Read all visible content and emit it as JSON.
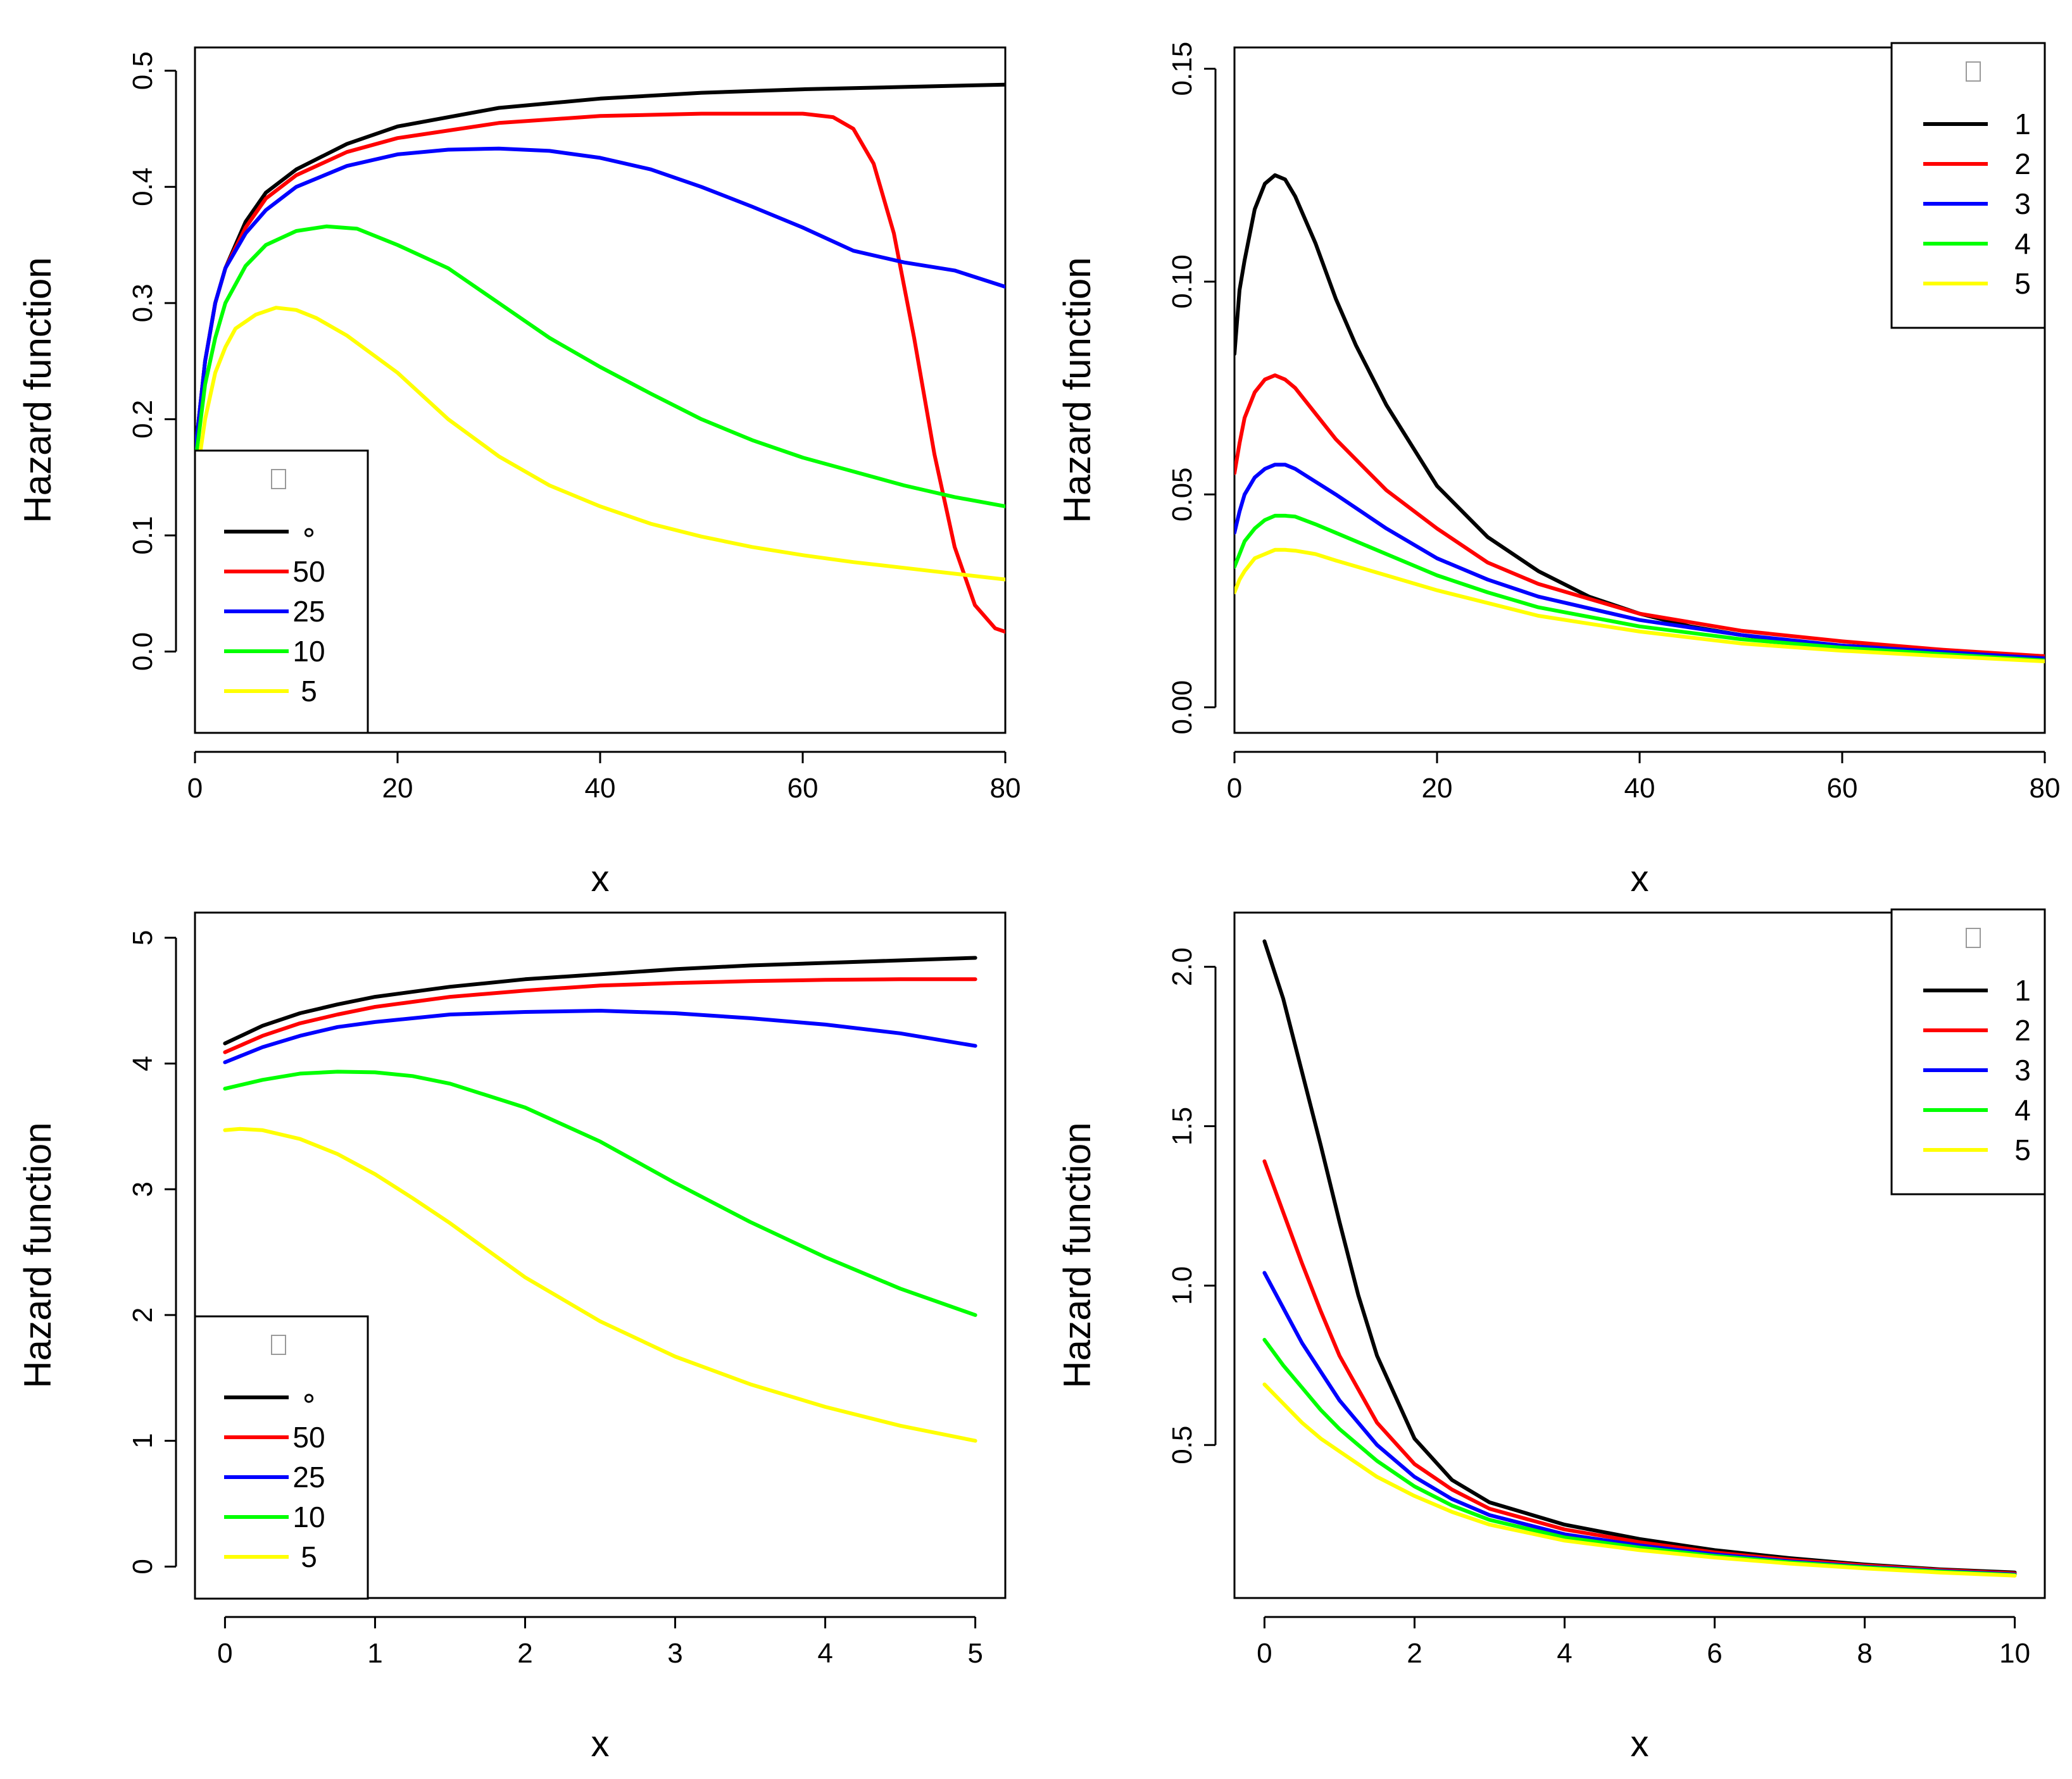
{
  "chart_data": [
    {
      "type": "line",
      "title": "",
      "xlabel": "x",
      "ylabel": "Hazard function",
      "xlim": [
        0,
        80
      ],
      "ylim": [
        -0.07,
        0.52
      ],
      "xticks": [
        0,
        20,
        40,
        60,
        80
      ],
      "xtick_labels": [
        "0",
        "20",
        "40",
        "60",
        "80"
      ],
      "yticks": [
        0.0,
        0.1,
        0.2,
        0.3,
        0.4,
        0.5
      ],
      "ytick_labels": [
        "0.0",
        "0.1",
        "0.2",
        "0.3",
        "0.4",
        "0.5"
      ],
      "legend": {
        "title": "",
        "position": "bottom-left"
      },
      "series": [
        {
          "name": "∘",
          "color": "#000000",
          "x": [
            0,
            1,
            2,
            3,
            5,
            7,
            10,
            15,
            20,
            30,
            40,
            50,
            60,
            70,
            80
          ],
          "y": [
            0.17,
            0.25,
            0.3,
            0.33,
            0.37,
            0.395,
            0.415,
            0.437,
            0.452,
            0.468,
            0.476,
            0.481,
            0.484,
            0.486,
            0.488
          ]
        },
        {
          "name": "50",
          "color": "#ff0000",
          "x": [
            0,
            1,
            2,
            3,
            5,
            7,
            10,
            15,
            20,
            30,
            40,
            50,
            60,
            63,
            65,
            67,
            69,
            71,
            73,
            75,
            77,
            79,
            80
          ],
          "y": [
            0.17,
            0.25,
            0.3,
            0.33,
            0.365,
            0.39,
            0.41,
            0.43,
            0.442,
            0.455,
            0.461,
            0.463,
            0.463,
            0.46,
            0.45,
            0.42,
            0.36,
            0.27,
            0.17,
            0.09,
            0.04,
            0.02,
            0.017
          ]
        },
        {
          "name": "25",
          "color": "#0000ff",
          "x": [
            0,
            1,
            2,
            3,
            5,
            7,
            10,
            15,
            20,
            25,
            30,
            35,
            40,
            45,
            50,
            55,
            60,
            65,
            70,
            75,
            80
          ],
          "y": [
            0.17,
            0.25,
            0.3,
            0.33,
            0.36,
            0.38,
            0.4,
            0.418,
            0.428,
            0.432,
            0.433,
            0.431,
            0.425,
            0.415,
            0.4,
            0.383,
            0.365,
            0.345,
            0.335,
            0.328,
            0.314
          ]
        },
        {
          "name": "10",
          "color": "#00ff00",
          "x": [
            0,
            1,
            2,
            3,
            5,
            7,
            10,
            13,
            16,
            20,
            25,
            30,
            35,
            40,
            45,
            50,
            55,
            60,
            65,
            70,
            75,
            80
          ],
          "y": [
            0.16,
            0.23,
            0.27,
            0.3,
            0.332,
            0.35,
            0.362,
            0.366,
            0.364,
            0.35,
            0.33,
            0.3,
            0.27,
            0.245,
            0.222,
            0.2,
            0.182,
            0.167,
            0.155,
            0.143,
            0.133,
            0.125
          ]
        },
        {
          "name": "5",
          "color": "#ffff00",
          "x": [
            0,
            1,
            2,
            3,
            4,
            6,
            8,
            10,
            12,
            15,
            20,
            25,
            30,
            35,
            40,
            45,
            50,
            55,
            60,
            65,
            70,
            75,
            80
          ],
          "y": [
            0.14,
            0.2,
            0.24,
            0.262,
            0.278,
            0.29,
            0.296,
            0.294,
            0.287,
            0.272,
            0.24,
            0.2,
            0.168,
            0.143,
            0.125,
            0.11,
            0.099,
            0.09,
            0.083,
            0.077,
            0.072,
            0.067,
            0.062
          ]
        }
      ]
    },
    {
      "type": "line",
      "title": "",
      "xlabel": "x",
      "ylabel": "Hazard function",
      "xlim": [
        0,
        80
      ],
      "ylim": [
        -0.006,
        0.155
      ],
      "xticks": [
        0,
        20,
        40,
        60,
        80
      ],
      "xtick_labels": [
        "0",
        "20",
        "40",
        "60",
        "80"
      ],
      "yticks": [
        0.0,
        0.05,
        0.1,
        0.15
      ],
      "ytick_labels": [
        "0.00",
        "0.05",
        "0.10",
        "0.15"
      ],
      "legend": {
        "title": "",
        "position": "top-right"
      },
      "series": [
        {
          "name": "1",
          "color": "#000000",
          "x": [
            0,
            0.5,
            1,
            2,
            3,
            4,
            5,
            6,
            8,
            10,
            12,
            15,
            20,
            25,
            30,
            35,
            40,
            45,
            50,
            55,
            60,
            70,
            80
          ],
          "y": [
            0.083,
            0.098,
            0.105,
            0.117,
            0.123,
            0.125,
            0.124,
            0.12,
            0.109,
            0.096,
            0.085,
            0.071,
            0.052,
            0.04,
            0.032,
            0.026,
            0.022,
            0.019,
            0.017,
            0.0155,
            0.0145,
            0.013,
            0.012
          ]
        },
        {
          "name": "2",
          "color": "#ff0000",
          "x": [
            0,
            0.5,
            1,
            2,
            3,
            4,
            5,
            6,
            8,
            10,
            15,
            20,
            25,
            30,
            40,
            50,
            60,
            70,
            80
          ],
          "y": [
            0.055,
            0.062,
            0.068,
            0.074,
            0.077,
            0.078,
            0.077,
            0.075,
            0.069,
            0.063,
            0.051,
            0.042,
            0.034,
            0.029,
            0.022,
            0.018,
            0.0155,
            0.0135,
            0.012
          ]
        },
        {
          "name": "3",
          "color": "#0000ff",
          "x": [
            0,
            0.5,
            1,
            2,
            3,
            4,
            5,
            6,
            8,
            10,
            15,
            20,
            25,
            30,
            40,
            50,
            60,
            70,
            80
          ],
          "y": [
            0.041,
            0.046,
            0.05,
            0.054,
            0.056,
            0.057,
            0.057,
            0.056,
            0.053,
            0.05,
            0.042,
            0.035,
            0.03,
            0.026,
            0.0205,
            0.017,
            0.0145,
            0.013,
            0.0115
          ]
        },
        {
          "name": "4",
          "color": "#00ff00",
          "x": [
            0,
            0.5,
            1,
            2,
            3,
            4,
            5,
            6,
            8,
            10,
            15,
            20,
            25,
            30,
            40,
            50,
            60,
            70,
            80
          ],
          "y": [
            0.033,
            0.036,
            0.039,
            0.042,
            0.044,
            0.045,
            0.045,
            0.0448,
            0.043,
            0.041,
            0.036,
            0.031,
            0.027,
            0.0235,
            0.019,
            0.016,
            0.014,
            0.0125,
            0.011
          ]
        },
        {
          "name": "5",
          "color": "#ffff00",
          "x": [
            0,
            0.5,
            1,
            2,
            3,
            4,
            5,
            6,
            8,
            10,
            15,
            20,
            25,
            30,
            40,
            50,
            60,
            70,
            80
          ],
          "y": [
            0.027,
            0.03,
            0.032,
            0.035,
            0.036,
            0.037,
            0.037,
            0.0368,
            0.036,
            0.0345,
            0.031,
            0.0275,
            0.0245,
            0.0215,
            0.0178,
            0.015,
            0.0133,
            0.012,
            0.0108
          ]
        }
      ]
    },
    {
      "type": "line",
      "title": "",
      "xlabel": "x",
      "ylabel": "Hazard function",
      "xlim": [
        -0.2,
        5.2
      ],
      "ylim": [
        -0.25,
        5.2
      ],
      "xticks": [
        0,
        1,
        2,
        3,
        4,
        5
      ],
      "xtick_labels": [
        "0",
        "1",
        "2",
        "3",
        "4",
        "5"
      ],
      "yticks": [
        0,
        1,
        2,
        3,
        4,
        5
      ],
      "ytick_labels": [
        "0",
        "1",
        "2",
        "3",
        "4",
        "5"
      ],
      "legend": {
        "title": "",
        "position": "bottom-left"
      },
      "series": [
        {
          "name": "∘",
          "color": "#000000",
          "x": [
            0,
            0.25,
            0.5,
            0.75,
            1,
            1.5,
            2,
            2.5,
            3,
            3.5,
            4,
            4.5,
            5
          ],
          "y": [
            4.16,
            4.3,
            4.4,
            4.47,
            4.53,
            4.61,
            4.67,
            4.71,
            4.75,
            4.78,
            4.8,
            4.82,
            4.84
          ]
        },
        {
          "name": "50",
          "color": "#ff0000",
          "x": [
            0,
            0.25,
            0.5,
            0.75,
            1,
            1.5,
            2,
            2.5,
            3,
            3.5,
            4,
            4.5,
            5
          ],
          "y": [
            4.09,
            4.22,
            4.32,
            4.39,
            4.45,
            4.53,
            4.58,
            4.62,
            4.64,
            4.655,
            4.665,
            4.67,
            4.67
          ]
        },
        {
          "name": "25",
          "color": "#0000ff",
          "x": [
            0,
            0.25,
            0.5,
            0.75,
            1,
            1.5,
            2,
            2.5,
            3,
            3.5,
            4,
            4.5,
            5
          ],
          "y": [
            4.01,
            4.13,
            4.22,
            4.29,
            4.33,
            4.39,
            4.41,
            4.42,
            4.4,
            4.36,
            4.31,
            4.24,
            4.14
          ]
        },
        {
          "name": "10",
          "color": "#00ff00",
          "x": [
            0,
            0.25,
            0.5,
            0.75,
            1,
            1.25,
            1.5,
            2,
            2.5,
            3,
            3.5,
            4,
            4.5,
            5
          ],
          "y": [
            3.8,
            3.87,
            3.92,
            3.935,
            3.93,
            3.9,
            3.84,
            3.65,
            3.38,
            3.05,
            2.74,
            2.46,
            2.21,
            2.0
          ]
        },
        {
          "name": "5",
          "color": "#ffff00",
          "x": [
            0,
            0.1,
            0.25,
            0.5,
            0.75,
            1,
            1.25,
            1.5,
            2,
            2.5,
            3,
            3.5,
            4,
            4.5,
            5
          ],
          "y": [
            3.47,
            3.48,
            3.47,
            3.4,
            3.28,
            3.12,
            2.93,
            2.73,
            2.3,
            1.95,
            1.67,
            1.45,
            1.27,
            1.12,
            1.0
          ]
        }
      ]
    },
    {
      "type": "line",
      "title": "",
      "xlabel": "x",
      "ylabel": "Hazard function",
      "xlim": [
        -0.4,
        10.4
      ],
      "ylim": [
        0.02,
        2.17
      ],
      "xticks": [
        0,
        2,
        4,
        6,
        8,
        10
      ],
      "xtick_labels": [
        "0",
        "2",
        "4",
        "6",
        "8",
        "10"
      ],
      "yticks": [
        0.5,
        1.0,
        1.5,
        2.0
      ],
      "ytick_labels": [
        "0.5",
        "1.0",
        "1.5",
        "2.0"
      ],
      "legend": {
        "title": "",
        "position": "top-right"
      },
      "series": [
        {
          "name": "1",
          "color": "#000000",
          "x": [
            0,
            0.25,
            0.5,
            0.75,
            1,
            1.25,
            1.5,
            2,
            2.5,
            3,
            4,
            5,
            6,
            7,
            8,
            9,
            10
          ],
          "y": [
            2.08,
            1.9,
            1.67,
            1.44,
            1.2,
            0.97,
            0.78,
            0.52,
            0.39,
            0.32,
            0.25,
            0.205,
            0.17,
            0.145,
            0.125,
            0.11,
            0.1
          ]
        },
        {
          "name": "2",
          "color": "#ff0000",
          "x": [
            0,
            0.25,
            0.5,
            0.75,
            1,
            1.5,
            2,
            2.5,
            3,
            4,
            5,
            6,
            7,
            8,
            9,
            10
          ],
          "y": [
            1.39,
            1.23,
            1.07,
            0.92,
            0.78,
            0.57,
            0.44,
            0.36,
            0.3,
            0.235,
            0.195,
            0.163,
            0.14,
            0.122,
            0.108,
            0.097
          ]
        },
        {
          "name": "3",
          "color": "#0000ff",
          "x": [
            0,
            0.25,
            0.5,
            0.75,
            1,
            1.5,
            2,
            2.5,
            3,
            4,
            5,
            6,
            7,
            8,
            9,
            10
          ],
          "y": [
            1.04,
            0.93,
            0.82,
            0.73,
            0.64,
            0.5,
            0.4,
            0.33,
            0.28,
            0.22,
            0.185,
            0.157,
            0.135,
            0.118,
            0.105,
            0.094
          ]
        },
        {
          "name": "4",
          "color": "#00ff00",
          "x": [
            0,
            0.25,
            0.5,
            0.75,
            1,
            1.5,
            2,
            2.5,
            3,
            4,
            5,
            6,
            7,
            8,
            9,
            10
          ],
          "y": [
            0.83,
            0.75,
            0.68,
            0.61,
            0.55,
            0.45,
            0.37,
            0.31,
            0.265,
            0.21,
            0.178,
            0.152,
            0.132,
            0.116,
            0.103,
            0.092
          ]
        },
        {
          "name": "5",
          "color": "#ffff00",
          "x": [
            0,
            0.25,
            0.5,
            0.75,
            1,
            1.5,
            2,
            2.5,
            3,
            4,
            5,
            6,
            7,
            8,
            9,
            10
          ],
          "y": [
            0.69,
            0.63,
            0.57,
            0.52,
            0.48,
            0.4,
            0.34,
            0.29,
            0.25,
            0.2,
            0.17,
            0.147,
            0.128,
            0.113,
            0.1,
            0.09
          ]
        }
      ]
    }
  ]
}
